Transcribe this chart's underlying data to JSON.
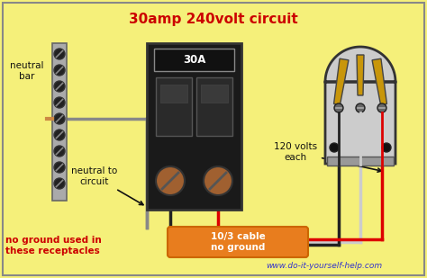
{
  "title": "30amp 240volt circuit",
  "title_color": "#cc0000",
  "bg_color": "#f5f07a",
  "label_neutral_bar": "neutral\nbar",
  "label_neutral_circuit": "neutral to\ncircuit",
  "label_no_ground": "no ground used in\nthese receptacles",
  "label_120v": "120 volts\neach",
  "label_cable": "10/3 cable\nno ground",
  "label_30A": "30A",
  "label_website": "www.do-it-yourself-help.com",
  "breaker_color": "#1a1a1a",
  "breaker_screw_color": "#a06030",
  "neutral_bar_color": "#aaaaaa",
  "wire_black": "#222222",
  "wire_red": "#dd0000",
  "wire_white": "#cccccc",
  "cable_box_color": "#e87d1e",
  "outlet_body_color": "#cccccc",
  "outlet_slot_color": "#c8960a",
  "outlet_border_color": "#333333",
  "screw_dark": "#222222",
  "screw_mid": "#666666"
}
